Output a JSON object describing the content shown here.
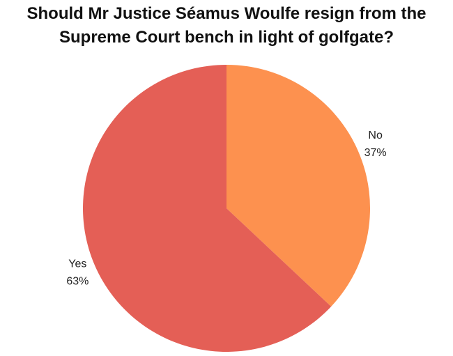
{
  "chart_data": {
    "type": "pie",
    "title": "Should Mr Justice Séamus Woulfe resign from the Supreme Court bench in light of golfgate?",
    "categories": [
      "No",
      "Yes"
    ],
    "values": [
      37,
      63
    ],
    "value_labels": [
      "37%",
      "63%"
    ],
    "colors": [
      "#fd914f",
      "#e45f56"
    ]
  }
}
